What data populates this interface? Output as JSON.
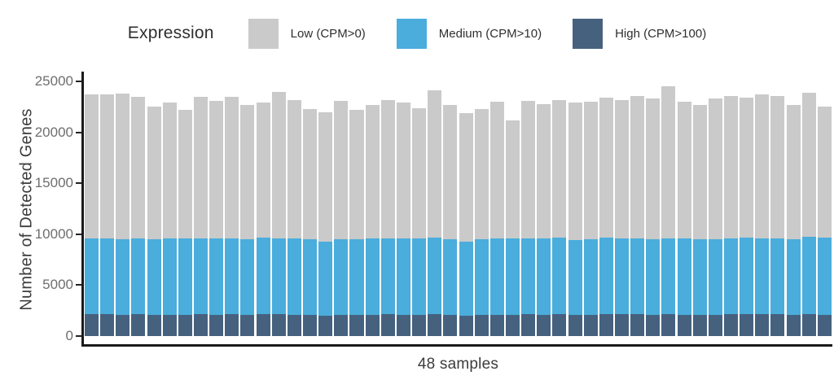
{
  "legend": {
    "title": "Expression",
    "items": [
      {
        "name": "low",
        "label": "Low (CPM>0)",
        "color": "#cacaca"
      },
      {
        "name": "medium",
        "label": "Medium (CPM>10)",
        "color": "#4aaddc"
      },
      {
        "name": "high",
        "label": "High (CPM>100)",
        "color": "#46617e"
      }
    ]
  },
  "chart_data": {
    "type": "bar",
    "stacked": true,
    "title": "",
    "xlabel": "48 samples",
    "ylabel": "Number of Detected Genes",
    "ylim": [
      0,
      25000
    ],
    "yticks": [
      0,
      5000,
      10000,
      15000,
      20000,
      25000
    ],
    "grid": false,
    "legend_position": "top",
    "series_meaning": "cumulative detected genes per sample at CPM thresholds; stacked segments are high, medium-high, total-medium",
    "n_samples": 48,
    "samples": [
      {
        "total": 23700,
        "medium": 9620,
        "high": 2120
      },
      {
        "total": 23700,
        "medium": 9570,
        "high": 2150
      },
      {
        "total": 23800,
        "medium": 9520,
        "high": 2100
      },
      {
        "total": 23500,
        "medium": 9620,
        "high": 2130
      },
      {
        "total": 22500,
        "medium": 9520,
        "high": 2060
      },
      {
        "total": 22900,
        "medium": 9570,
        "high": 2100
      },
      {
        "total": 22200,
        "medium": 9570,
        "high": 2080
      },
      {
        "total": 23500,
        "medium": 9620,
        "high": 2140
      },
      {
        "total": 23100,
        "medium": 9570,
        "high": 2100
      },
      {
        "total": 23500,
        "medium": 9620,
        "high": 2120
      },
      {
        "total": 22700,
        "medium": 9520,
        "high": 2060
      },
      {
        "total": 22900,
        "medium": 9680,
        "high": 2150
      },
      {
        "total": 24000,
        "medium": 9620,
        "high": 2130
      },
      {
        "total": 23200,
        "medium": 9570,
        "high": 2100
      },
      {
        "total": 22300,
        "medium": 9520,
        "high": 2050
      },
      {
        "total": 22000,
        "medium": 9250,
        "high": 2000
      },
      {
        "total": 23100,
        "medium": 9520,
        "high": 2100
      },
      {
        "total": 22200,
        "medium": 9520,
        "high": 2060
      },
      {
        "total": 22700,
        "medium": 9570,
        "high": 2100
      },
      {
        "total": 23200,
        "medium": 9570,
        "high": 2120
      },
      {
        "total": 22900,
        "medium": 9570,
        "high": 2100
      },
      {
        "total": 22400,
        "medium": 9570,
        "high": 2080
      },
      {
        "total": 24100,
        "medium": 9680,
        "high": 2160
      },
      {
        "total": 22700,
        "medium": 9470,
        "high": 2060
      },
      {
        "total": 21900,
        "medium": 9300,
        "high": 2000
      },
      {
        "total": 22300,
        "medium": 9520,
        "high": 2050
      },
      {
        "total": 23000,
        "medium": 9570,
        "high": 2100
      },
      {
        "total": 21200,
        "medium": 9570,
        "high": 2080
      },
      {
        "total": 23100,
        "medium": 9620,
        "high": 2120
      },
      {
        "total": 22800,
        "medium": 9570,
        "high": 2100
      },
      {
        "total": 23200,
        "medium": 9680,
        "high": 2140
      },
      {
        "total": 22900,
        "medium": 9400,
        "high": 2060
      },
      {
        "total": 23000,
        "medium": 9520,
        "high": 2100
      },
      {
        "total": 23400,
        "medium": 9680,
        "high": 2140
      },
      {
        "total": 23200,
        "medium": 9620,
        "high": 2120
      },
      {
        "total": 23600,
        "medium": 9620,
        "high": 2130
      },
      {
        "total": 23300,
        "medium": 9520,
        "high": 2100
      },
      {
        "total": 24500,
        "medium": 9620,
        "high": 2160
      },
      {
        "total": 23000,
        "medium": 9570,
        "high": 2100
      },
      {
        "total": 22700,
        "medium": 9520,
        "high": 2060
      },
      {
        "total": 23300,
        "medium": 9520,
        "high": 2100
      },
      {
        "total": 23600,
        "medium": 9570,
        "high": 2120
      },
      {
        "total": 23400,
        "medium": 9680,
        "high": 2140
      },
      {
        "total": 23700,
        "medium": 9620,
        "high": 2130
      },
      {
        "total": 23600,
        "medium": 9570,
        "high": 2120
      },
      {
        "total": 22700,
        "medium": 9520,
        "high": 2080
      },
      {
        "total": 23900,
        "medium": 9730,
        "high": 2160
      },
      {
        "total": 22500,
        "medium": 9680,
        "high": 2100
      }
    ]
  },
  "axis": {
    "line_color": "#1a1a1a",
    "tick_color": "#6e6e6e"
  }
}
